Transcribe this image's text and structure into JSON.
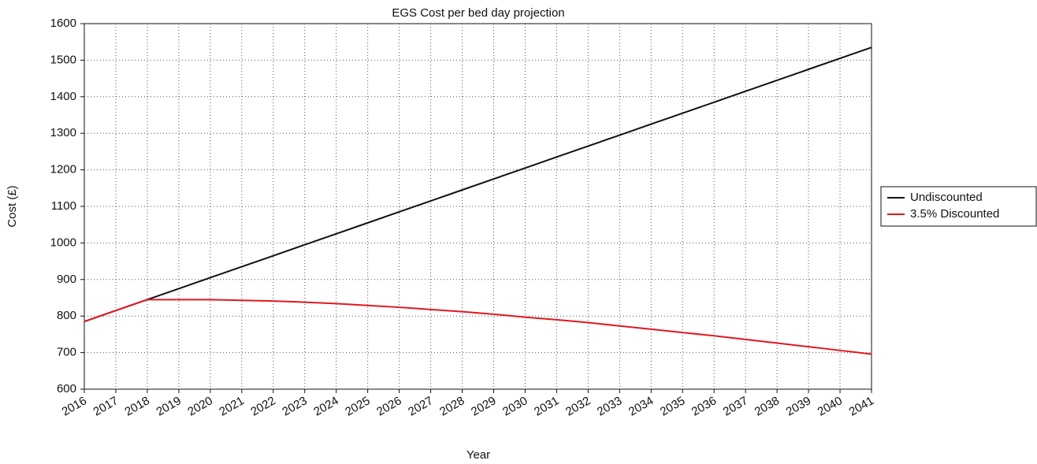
{
  "chart_data": {
    "type": "line",
    "title": "EGS Cost per bed day projection",
    "x_label": "Year",
    "y_label": "Cost (£)",
    "x": [
      2016,
      2017,
      2018,
      2019,
      2020,
      2021,
      2022,
      2023,
      2024,
      2025,
      2026,
      2027,
      2028,
      2029,
      2030,
      2031,
      2032,
      2033,
      2034,
      2035,
      2036,
      2037,
      2038,
      2039,
      2040,
      2041
    ],
    "series": [
      {
        "name": "Undiscounted",
        "color": "#111111",
        "values": [
          785,
          815,
          845,
          875,
          905,
          935,
          965,
          995,
          1025,
          1055,
          1085,
          1115,
          1145,
          1175,
          1205,
          1235,
          1265,
          1295,
          1325,
          1355,
          1385,
          1415,
          1445,
          1475,
          1505,
          1535
        ]
      },
      {
        "name": "3.5% Discounted",
        "color": "#e0191e",
        "values": [
          785,
          815,
          845,
          845,
          845,
          843,
          841,
          838,
          834,
          829,
          824,
          818,
          812,
          805,
          797,
          790,
          782,
          773,
          764,
          755,
          746,
          736,
          726,
          716,
          706,
          696
        ]
      }
    ],
    "xlim": [
      2016,
      2041
    ],
    "xticks": [
      2016,
      2017,
      2018,
      2019,
      2020,
      2021,
      2022,
      2023,
      2024,
      2025,
      2026,
      2027,
      2028,
      2029,
      2030,
      2031,
      2032,
      2033,
      2034,
      2035,
      2036,
      2037,
      2038,
      2039,
      2040,
      2041
    ],
    "ylim": [
      600,
      1600
    ],
    "yticks": [
      600,
      700,
      800,
      900,
      1000,
      1100,
      1200,
      1300,
      1400,
      1500,
      1600
    ],
    "grid": true,
    "legend": "right"
  }
}
